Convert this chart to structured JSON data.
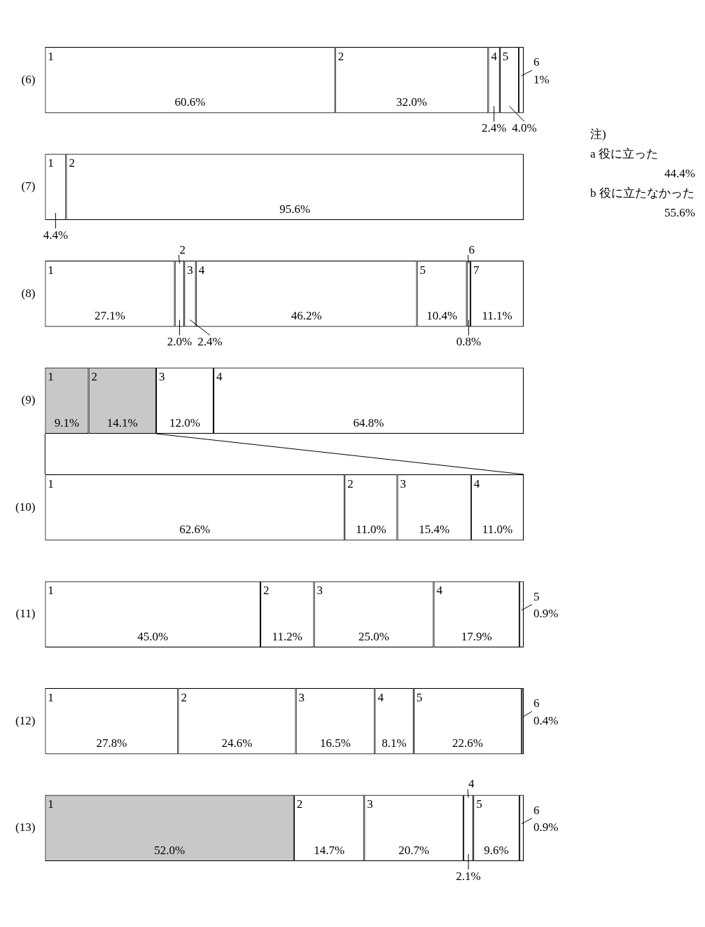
{
  "chart_data": {
    "type": "bar",
    "orientation": "horizontal",
    "stacked": true,
    "categories": [
      "(6)",
      "(7)",
      "(8)",
      "(9)",
      "(10)",
      "(11)",
      "(12)",
      "(13)"
    ],
    "xlim": [
      0,
      100
    ],
    "tick_labels": "y",
    "grid": false,
    "legend": false,
    "series": [
      {
        "name": "1",
        "colors": [
          "#ffffff",
          "#ffffff",
          "#ffffff",
          "#c8c8c8",
          "#ffffff",
          "#ffffff",
          "#ffffff",
          "#c8c8c8"
        ],
        "values": [
          60.6,
          4.4,
          27.1,
          9.1,
          62.6,
          45.0,
          27.8,
          52.0
        ],
        "value_labels": [
          "60.6%",
          "4.4%",
          "27.1%",
          "9.1%",
          "62.6%",
          "45.0%",
          "27.8%",
          "52.0%"
        ]
      },
      {
        "name": "2",
        "colors": [
          "#ffffff",
          "#ffffff",
          "#ffffff",
          "#c8c8c8",
          "#ffffff",
          "#ffffff",
          "#ffffff",
          "#ffffff"
        ],
        "values": [
          32.0,
          95.6,
          2.0,
          14.1,
          11.0,
          11.2,
          24.6,
          14.7
        ],
        "value_labels": [
          "32.0%",
          "95.6%",
          "2.0%",
          "14.1%",
          "11.0%",
          "11.2%",
          "24.6%",
          "14.7%"
        ]
      },
      {
        "name": "3",
        "color": "#ffffff",
        "values": [
          null,
          null,
          2.4,
          12.0,
          15.4,
          25.0,
          16.5,
          20.7
        ],
        "value_labels": [
          null,
          null,
          "2.4%",
          "12.0%",
          "15.4%",
          "25.0%",
          "16.5%",
          "20.7%"
        ]
      },
      {
        "name": "4",
        "color": "#ffffff",
        "values": [
          2.4,
          null,
          46.2,
          64.8,
          11.0,
          17.9,
          8.1,
          2.1
        ],
        "value_labels": [
          "2.4%",
          null,
          "46.2%",
          "64.8%",
          "11.0%",
          "17.9%",
          "8.1%",
          "2.1%"
        ]
      },
      {
        "name": "5",
        "color": "#ffffff",
        "values": [
          4.0,
          null,
          10.4,
          null,
          null,
          0.9,
          22.6,
          9.6
        ],
        "value_labels": [
          "4.0%",
          null,
          "10.4%",
          null,
          null,
          "0.9%",
          "22.6%",
          "9.6%"
        ]
      },
      {
        "name": "6",
        "color": "#ffffff",
        "values": [
          1,
          null,
          0.8,
          null,
          null,
          null,
          0.4,
          0.9
        ],
        "value_labels": [
          "1%",
          null,
          "0.8%",
          null,
          null,
          null,
          "0.4%",
          "0.9%"
        ]
      },
      {
        "name": "7",
        "color": "#ffffff",
        "values": [
          null,
          null,
          11.1,
          null,
          null,
          null,
          null,
          null
        ],
        "value_labels": [
          null,
          null,
          "11.1%",
          null,
          null,
          null,
          null,
          null
        ]
      }
    ],
    "annotations": [
      "注)",
      "a  役に立った",
      "44.4%",
      "b  役に立たなかった",
      "55.6%"
    ]
  }
}
